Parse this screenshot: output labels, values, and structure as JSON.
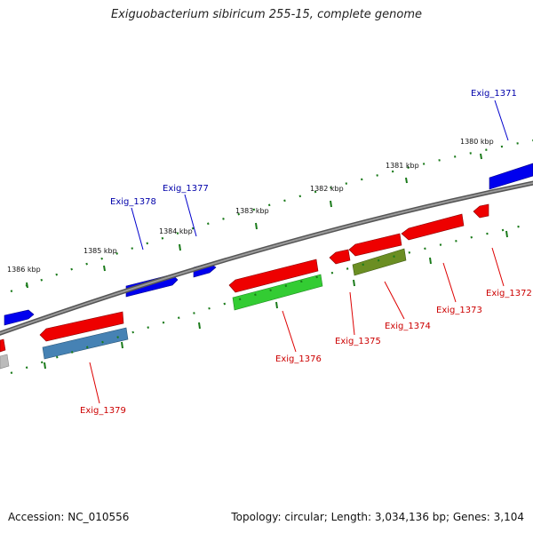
{
  "title": "Exiguobacterium sibiricum 255-15, complete genome",
  "footer": {
    "accession": "Accession: NC_010556",
    "summary": "Topology: circular; Length: 3,034,136 bp; Genes: 3,104"
  },
  "scale": {
    "unit": "kbp",
    "ticks": [
      "1380 kbp",
      "1381 kbp",
      "1382 kbp",
      "1383 kbp",
      "1384 kbp",
      "1385 kbp",
      "1386 kbp"
    ]
  },
  "colors": {
    "backbone": "#808080",
    "tick": "#1a7a1a",
    "forward_gene": "#0000ee",
    "reverse_gene": "#ee0000",
    "cds_green": "#33cc33",
    "cds_olive": "#6b8e23",
    "cds_steel": "#4682b4",
    "cds_gray": "#bbbbbb",
    "label_forward": "#0000aa",
    "label_reverse": "#cc0000"
  },
  "genes": [
    {
      "label": "Exig_1371",
      "strand": "forward"
    },
    {
      "label": "Exig_1372",
      "strand": "reverse"
    },
    {
      "label": "Exig_1373",
      "strand": "reverse"
    },
    {
      "label": "Exig_1374",
      "strand": "reverse"
    },
    {
      "label": "Exig_1375",
      "strand": "reverse"
    },
    {
      "label": "Exig_1376",
      "strand": "reverse"
    },
    {
      "label": "Exig_1377",
      "strand": "forward"
    },
    {
      "label": "Exig_1378",
      "strand": "forward"
    },
    {
      "label": "Exig_1379",
      "strand": "reverse"
    }
  ]
}
